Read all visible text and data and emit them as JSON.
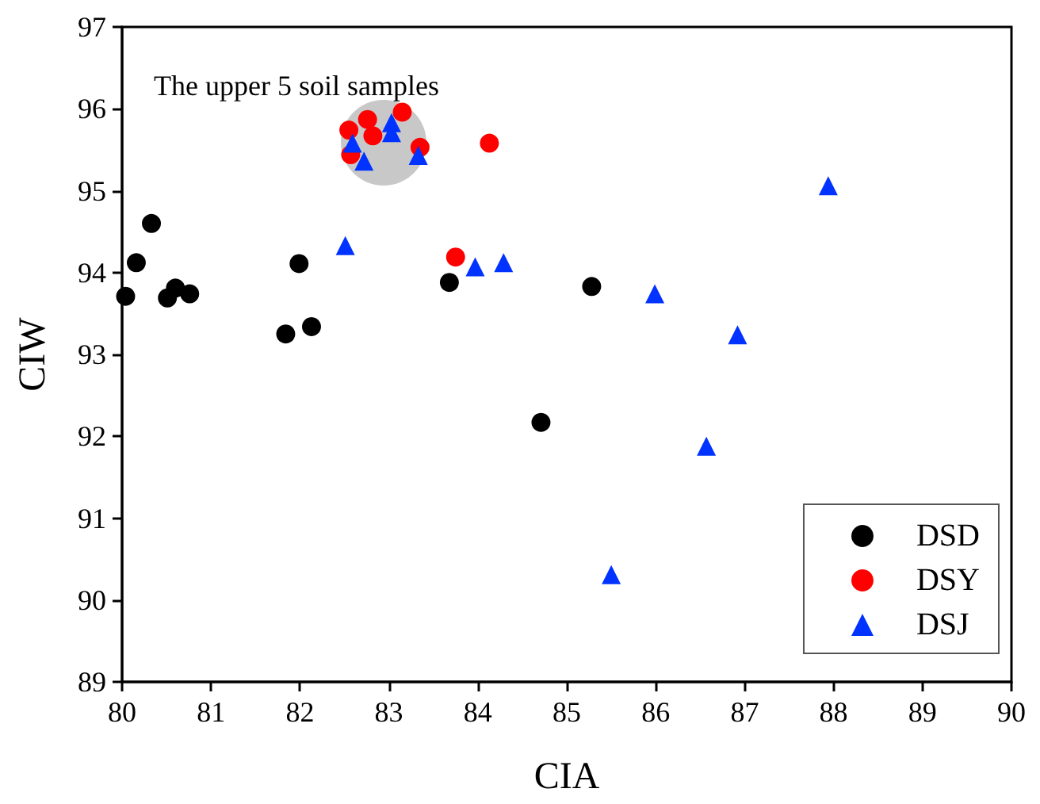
{
  "chart_data": {
    "type": "scatter",
    "xlabel": "CIA",
    "ylabel": "CIW",
    "xlim": [
      80,
      90
    ],
    "xticks": [
      80,
      81,
      82,
      83,
      84,
      85,
      86,
      87,
      88,
      89,
      90
    ],
    "ylim": [
      89,
      97
    ],
    "yticks": [
      89,
      90,
      91,
      92,
      93,
      94,
      95,
      96,
      97
    ],
    "grid": false,
    "legend": "bottom right",
    "annotations": [
      "The upper 5 soil samples"
    ],
    "series": [
      {
        "name": "DSD",
        "color": "#000000",
        "marker": "circle",
        "x": [
          80.04,
          80.16,
          80.33,
          80.51,
          80.6,
          80.76,
          81.84,
          82.13,
          81.99,
          83.68,
          85.28,
          84.71
        ],
        "values": [
          93.71,
          94.12,
          94.6,
          93.69,
          93.81,
          93.74,
          93.25,
          93.34,
          94.11,
          93.88,
          93.83,
          92.17
        ]
      },
      {
        "name": "DSY",
        "color": "#ff0000",
        "marker": "circle",
        "x": [
          82.55,
          82.76,
          82.82,
          83.15,
          82.57,
          83.35,
          84.13,
          83.75
        ],
        "values": [
          95.74,
          95.87,
          95.67,
          95.96,
          95.44,
          95.53,
          95.58,
          94.19
        ]
      },
      {
        "name": "DSJ",
        "color": "#0033ff",
        "marker": "triangle",
        "x": [
          82.59,
          83.03,
          83.03,
          82.72,
          83.33,
          82.51,
          83.97,
          84.29,
          85.99,
          86.92,
          86.57,
          85.5,
          87.94
        ],
        "values": [
          95.58,
          95.83,
          95.71,
          95.36,
          95.43,
          94.33,
          94.07,
          94.12,
          93.74,
          93.24,
          91.88,
          90.31,
          95.06
        ]
      }
    ]
  }
}
